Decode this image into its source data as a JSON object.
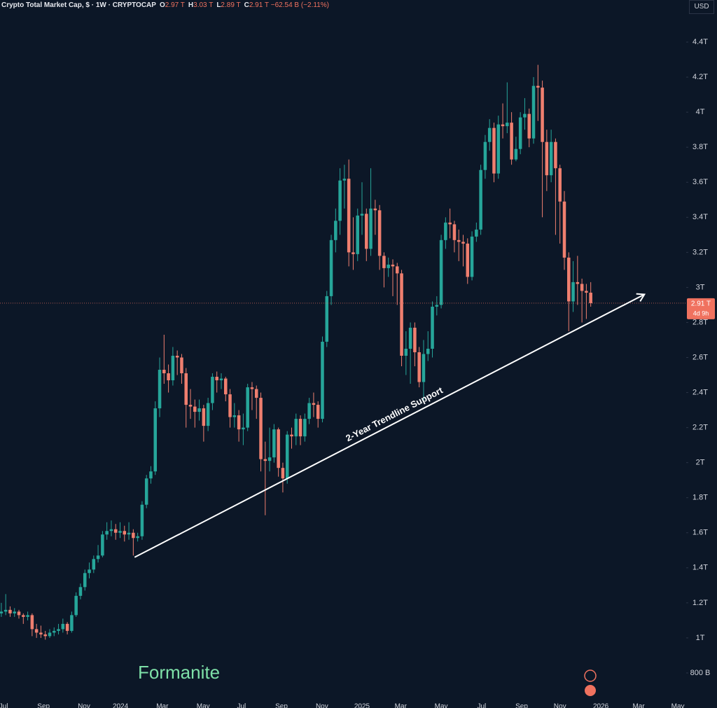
{
  "header": {
    "symbol": "Crypto Total Market Cap, $ · 1W · CRYPTOCAP",
    "ohlc": [
      {
        "label": "O",
        "value": "2.97 T"
      },
      {
        "label": "H",
        "value": "3.03 T"
      },
      {
        "label": "L",
        "value": "2.89 T"
      },
      {
        "label": "C",
        "value": "2.91 T"
      }
    ],
    "change": "−62.54 B (−2.11%)",
    "currency": "USD"
  },
  "watermark": "Formanite",
  "chart_data": {
    "type": "candlestick",
    "up_color": "#26a69a",
    "down_color": "#ef7f6f",
    "grid": false,
    "open": [
      1.14,
      1.15,
      1.16,
      1.14,
      1.15,
      1.13,
      1.12,
      1.13,
      1.05,
      1.03,
      1.02,
      1.01,
      1.03,
      1.04,
      1.05,
      1.08,
      1.04,
      1.13,
      1.24,
      1.29,
      1.37,
      1.39,
      1.45,
      1.47,
      1.59,
      1.61,
      1.62,
      1.6,
      1.61,
      1.59,
      1.6,
      1.57,
      1.58,
      1.76,
      1.91,
      1.95,
      2.31,
      2.53,
      2.51,
      2.47,
      2.61,
      2.6,
      2.51,
      2.33,
      2.32,
      2.29,
      2.31,
      2.21,
      2.34,
      2.49,
      2.47,
      2.48,
      2.39,
      2.26,
      2.27,
      2.19,
      2.2,
      2.43,
      2.42,
      2.37,
      2.02,
      2.01,
      2.03,
      2.19,
      1.97,
      1.91,
      2.16,
      2.15,
      2.25,
      2.15,
      2.25,
      2.34,
      2.33,
      2.25,
      2.69,
      2.95,
      3.27,
      3.38,
      3.61,
      3.62,
      3.2,
      3.19,
      3.41,
      3.42,
      3.22,
      3.45,
      3.44,
      3.18,
      3.11,
      3.13,
      3.12,
      3.08,
      2.61,
      2.65,
      2.77,
      2.63,
      2.46,
      2.62,
      2.65,
      2.89,
      2.9,
      3.27,
      3.37,
      3.36,
      3.27,
      3.26,
      3.25,
      3.06,
      3.29,
      3.33,
      3.67,
      3.83,
      3.91,
      3.65,
      3.93,
      3.92,
      3.94,
      3.73,
      3.79,
      3.97,
      3.99,
      3.85,
      4.15,
      4.14,
      3.83,
      3.64,
      3.83,
      3.68,
      3.49,
      3.17,
      2.92,
      3.03,
      3.02,
      2.98,
      2.97
    ],
    "high": [
      1.2,
      1.25,
      1.18,
      1.17,
      1.16,
      1.14,
      1.15,
      1.14,
      1.08,
      1.07,
      1.04,
      1.05,
      1.06,
      1.08,
      1.11,
      1.09,
      1.15,
      1.26,
      1.31,
      1.39,
      1.43,
      1.47,
      1.53,
      1.61,
      1.66,
      1.67,
      1.65,
      1.66,
      1.64,
      1.66,
      1.62,
      1.6,
      1.78,
      1.93,
      1.98,
      2.35,
      2.6,
      2.73,
      2.56,
      2.66,
      2.64,
      2.62,
      2.54,
      2.42,
      2.36,
      2.36,
      2.33,
      2.37,
      2.51,
      2.52,
      2.51,
      2.49,
      2.42,
      2.34,
      2.3,
      2.28,
      2.45,
      2.46,
      2.44,
      2.4,
      2.12,
      2.2,
      2.22,
      2.2,
      2.0,
      2.18,
      2.2,
      2.28,
      2.27,
      2.28,
      2.37,
      2.4,
      2.35,
      2.72,
      2.98,
      3.3,
      3.45,
      3.68,
      3.7,
      3.73,
      3.4,
      3.45,
      3.6,
      3.45,
      3.68,
      3.5,
      3.47,
      3.2,
      3.17,
      3.16,
      3.14,
      3.1,
      2.75,
      2.8,
      2.8,
      2.66,
      2.7,
      2.75,
      2.92,
      2.95,
      3.3,
      3.4,
      3.45,
      3.38,
      3.33,
      3.3,
      3.28,
      3.32,
      3.37,
      3.7,
      3.87,
      3.96,
      3.94,
      3.98,
      4.05,
      4.17,
      4.0,
      3.86,
      4.0,
      4.08,
      4.02,
      4.2,
      4.27,
      4.18,
      3.9,
      3.9,
      3.85,
      3.7,
      3.55,
      3.2,
      3.15,
      3.18,
      3.05,
      3.02,
      3.03
    ],
    "low": [
      1.12,
      1.13,
      1.12,
      1.12,
      1.11,
      1.08,
      1.1,
      1.01,
      1.0,
      1.0,
      0.99,
      1.0,
      1.01,
      1.02,
      1.03,
      1.02,
      1.03,
      1.12,
      1.22,
      1.27,
      1.34,
      1.37,
      1.43,
      1.46,
      1.56,
      1.58,
      1.56,
      1.57,
      1.55,
      1.56,
      1.47,
      1.55,
      1.56,
      1.74,
      1.88,
      1.93,
      2.26,
      2.45,
      2.4,
      2.44,
      2.5,
      2.45,
      2.2,
      2.25,
      2.2,
      2.24,
      2.12,
      2.18,
      2.3,
      2.4,
      2.42,
      2.35,
      2.2,
      2.2,
      2.12,
      2.1,
      2.18,
      2.3,
      2.25,
      1.95,
      1.7,
      1.95,
      2.0,
      1.92,
      1.83,
      1.88,
      2.08,
      2.1,
      2.1,
      2.12,
      2.22,
      2.26,
      2.2,
      2.23,
      2.66,
      2.9,
      3.2,
      3.3,
      3.45,
      3.12,
      3.1,
      3.15,
      3.3,
      3.15,
      3.18,
      3.3,
      3.1,
      3.0,
      3.06,
      2.95,
      2.9,
      2.55,
      2.5,
      2.45,
      2.55,
      2.43,
      2.35,
      2.58,
      2.6,
      2.84,
      2.88,
      3.22,
      3.28,
      3.2,
      3.15,
      3.12,
      3.02,
      3.04,
      3.26,
      3.3,
      3.62,
      3.78,
      3.6,
      3.62,
      3.85,
      3.88,
      3.7,
      3.72,
      3.76,
      3.9,
      3.8,
      3.82,
      3.95,
      3.4,
      3.55,
      3.6,
      3.3,
      3.25,
      3.1,
      2.75,
      2.86,
      2.9,
      2.8,
      2.82,
      2.89
    ],
    "close": [
      1.15,
      1.16,
      1.14,
      1.15,
      1.13,
      1.12,
      1.13,
      1.05,
      1.03,
      1.02,
      1.01,
      1.03,
      1.04,
      1.05,
      1.08,
      1.04,
      1.13,
      1.24,
      1.29,
      1.37,
      1.39,
      1.45,
      1.47,
      1.59,
      1.61,
      1.62,
      1.6,
      1.61,
      1.59,
      1.6,
      1.57,
      1.58,
      1.76,
      1.91,
      1.95,
      2.31,
      2.53,
      2.51,
      2.47,
      2.61,
      2.6,
      2.51,
      2.33,
      2.32,
      2.29,
      2.31,
      2.21,
      2.34,
      2.49,
      2.47,
      2.48,
      2.39,
      2.26,
      2.27,
      2.19,
      2.2,
      2.43,
      2.42,
      2.37,
      2.02,
      2.01,
      2.03,
      2.19,
      1.97,
      1.91,
      2.16,
      2.15,
      2.25,
      2.15,
      2.25,
      2.34,
      2.33,
      2.25,
      2.69,
      2.95,
      3.27,
      3.38,
      3.61,
      3.62,
      3.2,
      3.19,
      3.41,
      3.42,
      3.22,
      3.45,
      3.44,
      3.18,
      3.11,
      3.13,
      3.12,
      3.08,
      2.61,
      2.65,
      2.77,
      2.63,
      2.46,
      2.62,
      2.65,
      2.89,
      2.9,
      3.27,
      3.37,
      3.36,
      3.27,
      3.26,
      3.25,
      3.06,
      3.29,
      3.33,
      3.67,
      3.83,
      3.91,
      3.65,
      3.93,
      3.92,
      3.94,
      3.73,
      3.79,
      3.97,
      3.99,
      3.85,
      4.15,
      4.14,
      3.83,
      3.64,
      3.83,
      3.68,
      3.49,
      3.17,
      2.92,
      3.03,
      3.02,
      2.98,
      2.97,
      2.91
    ],
    "xlim": [
      -0.3,
      155.7
    ],
    "xticks": [
      {
        "value": 0.5,
        "label": "Jul"
      },
      {
        "value": 9.6,
        "label": "Sep"
      },
      {
        "value": 18.8,
        "label": "Nov"
      },
      {
        "value": 27.1,
        "label": "2024"
      },
      {
        "value": 36.6,
        "label": "Mar"
      },
      {
        "value": 45.9,
        "label": "May"
      },
      {
        "value": 54.6,
        "label": "Jul"
      },
      {
        "value": 63.7,
        "label": "Sep"
      },
      {
        "value": 72.9,
        "label": "Nov"
      },
      {
        "value": 82.0,
        "label": "2025"
      },
      {
        "value": 90.8,
        "label": "Mar"
      },
      {
        "value": 100.0,
        "label": "May"
      },
      {
        "value": 109.2,
        "label": "Jul"
      },
      {
        "value": 118.3,
        "label": "Sep"
      },
      {
        "value": 127.0,
        "label": "Nov"
      },
      {
        "value": 136.3,
        "label": "2026"
      },
      {
        "value": 144.9,
        "label": "Mar"
      },
      {
        "value": 153.8,
        "label": "May"
      }
    ],
    "ylim": [
      0.6,
      4.64
    ],
    "yticks": [
      {
        "value": 0.8,
        "label": "800 B"
      },
      {
        "value": 1,
        "label": "1T"
      },
      {
        "value": 1.2,
        "label": "1.2T"
      },
      {
        "value": 1.4,
        "label": "1.4T"
      },
      {
        "value": 1.6,
        "label": "1.6T"
      },
      {
        "value": 1.8,
        "label": "1.8T"
      },
      {
        "value": 2,
        "label": "2T"
      },
      {
        "value": 2.2,
        "label": "2.2T"
      },
      {
        "value": 2.4,
        "label": "2.4T"
      },
      {
        "value": 2.6,
        "label": "2.6T"
      },
      {
        "value": 2.8,
        "label": "2.8T"
      },
      {
        "value": 3,
        "label": "3T"
      },
      {
        "value": 3.2,
        "label": "3.2T"
      },
      {
        "value": 3.4,
        "label": "3.4T"
      },
      {
        "value": 3.6,
        "label": "3.6T"
      },
      {
        "value": 3.8,
        "label": "3.8T"
      },
      {
        "value": 4,
        "label": "4T"
      },
      {
        "value": 4.2,
        "label": "4.2T"
      },
      {
        "value": 4.4,
        "label": "4.4T"
      }
    ],
    "price_label": {
      "value": 2.91,
      "label": "2.91 T",
      "countdown": "4d 9h",
      "color": "#f0725f"
    },
    "trendline": {
      "text": "2-Year Trendline Support",
      "from": [
        30.3,
        1.46
      ],
      "to": [
        146.2,
        2.96
      ]
    }
  }
}
